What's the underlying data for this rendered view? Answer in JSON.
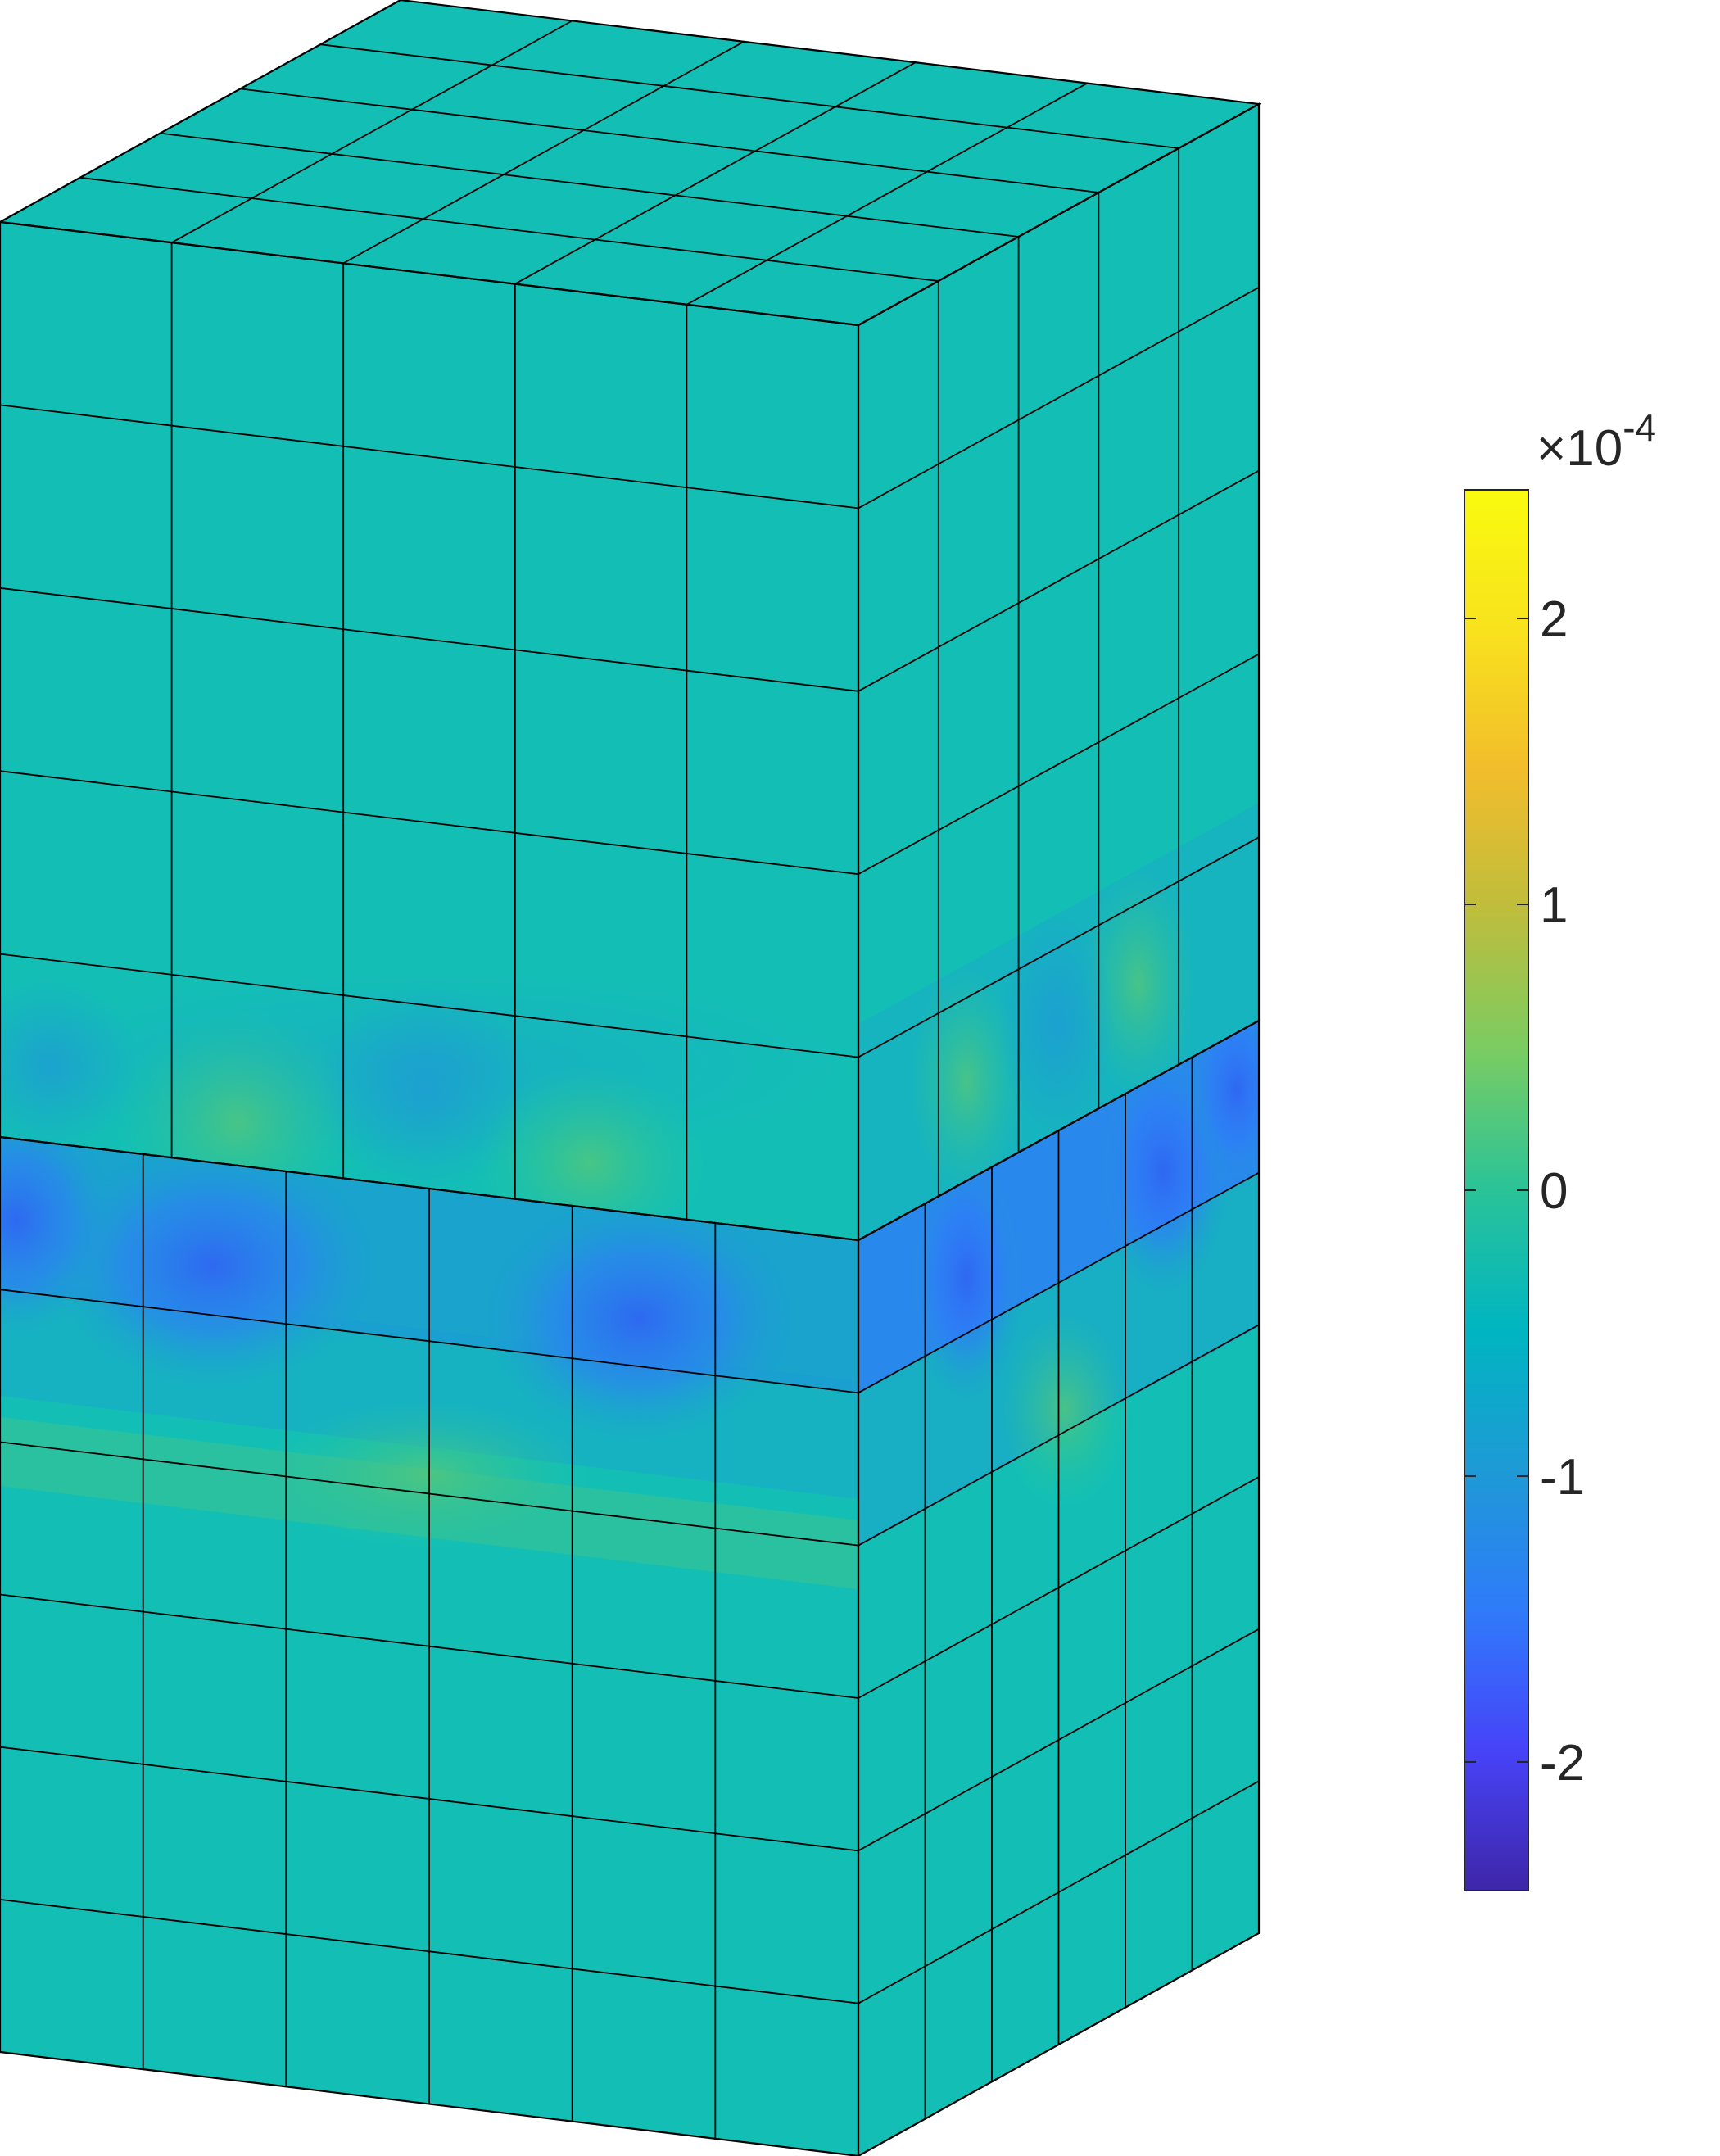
{
  "figure": {
    "colormap": "parula",
    "base_color": "#13bfb5",
    "edge_color": "#000000"
  },
  "colorbar": {
    "multiplier_base": "10",
    "multiplier_exponent": "-4",
    "multiplier_symbol": "×",
    "limits": [
      -2.45,
      2.45
    ],
    "ticks": [
      {
        "value": 2,
        "label": "2"
      },
      {
        "value": 1,
        "label": "1"
      },
      {
        "value": 0,
        "label": "0"
      },
      {
        "value": -1,
        "label": "-1"
      },
      {
        "value": -2,
        "label": "-2"
      }
    ],
    "colors": [
      "#3e26a8",
      "#4743f8",
      "#2f7bfa",
      "#1e9ad6",
      "#00b5c1",
      "#2ac398",
      "#7acc62",
      "#bebd3c",
      "#f2bd2c",
      "#f8e21d",
      "#f9fb0e"
    ]
  }
}
